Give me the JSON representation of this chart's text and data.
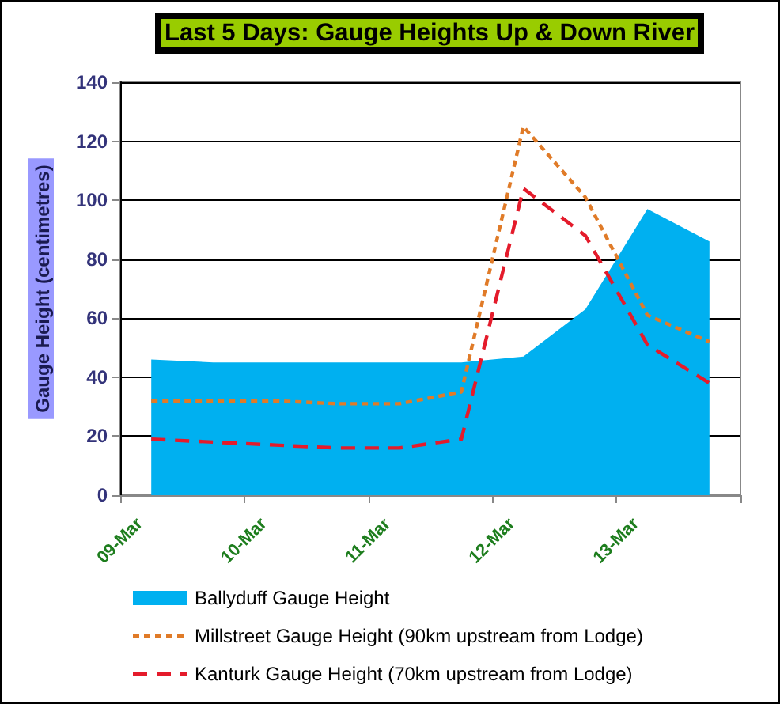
{
  "chart_data": {
    "type": "area",
    "title": "Last 5 Days: Gauge Heights Up & Down River",
    "ylabel": "Gauge Height (centimetres)",
    "x": [
      "--03-09T06:00",
      "--03-09T18:00",
      "--03-10T06:00",
      "--03-10T18:00",
      "--03-11T06:00",
      "--03-11T18:00",
      "--03-12T06:00",
      "--03-12T18:00",
      "--03-13T06:00",
      "--03-13T18:00"
    ],
    "xlim": [
      "--03-09",
      "--03-14"
    ],
    "xticks": [
      {
        "value": "--03-09",
        "label": "09-Mar"
      },
      {
        "value": "--03-10",
        "label": "10-Mar"
      },
      {
        "value": "--03-11",
        "label": "11-Mar"
      },
      {
        "value": "--03-12",
        "label": "12-Mar"
      },
      {
        "value": "--03-13",
        "label": "13-Mar"
      },
      {
        "value": "--03-14",
        "label": null
      }
    ],
    "ylim": [
      0,
      140
    ],
    "yticks": [
      0,
      20,
      40,
      60,
      80,
      100,
      120,
      140
    ],
    "grid": "y",
    "legend": "bottom",
    "marker": "none",
    "series": [
      {
        "name": "Ballyduff Gauge Height",
        "color": "#00b0f0",
        "values": [
          46,
          45,
          45,
          45,
          45,
          45,
          47,
          63,
          97,
          86
        ]
      },
      {
        "name": "Millstreet Gauge Height (90km upstream from Lodge)",
        "type": "line",
        "color": "#e07b28",
        "line_style": "dotted",
        "values": [
          32,
          32,
          32,
          31,
          31,
          35,
          125,
          101,
          61,
          52
        ]
      },
      {
        "name": "Kanturk Gauge Height (70km upstream from Lodge)",
        "type": "line",
        "color": "#e41b2b",
        "line_style": "dashed",
        "values": [
          19,
          18,
          17,
          16,
          16,
          19,
          104,
          88,
          51,
          38
        ]
      }
    ]
  }
}
